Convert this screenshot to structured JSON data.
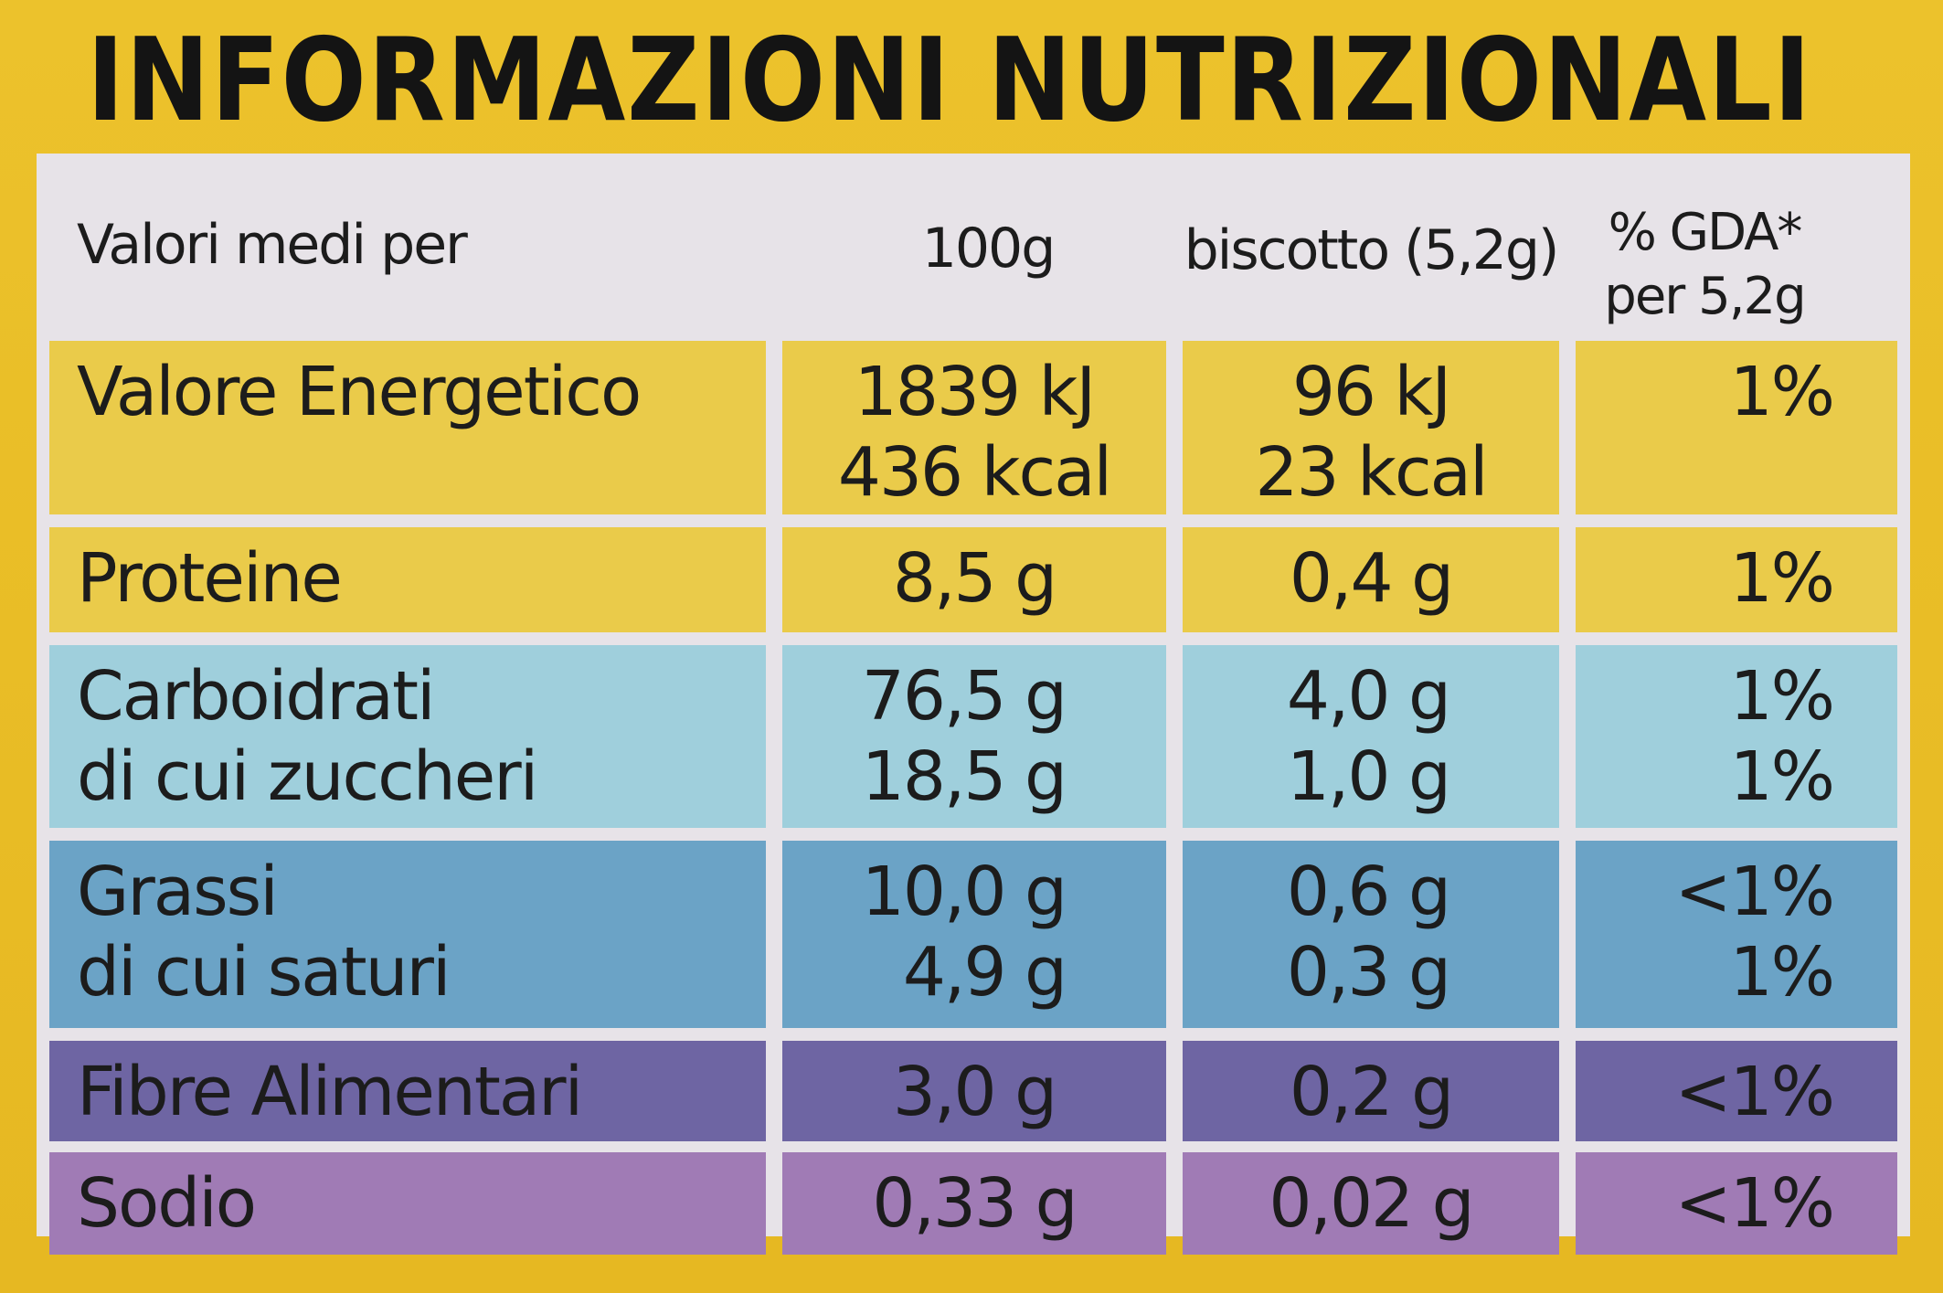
{
  "title": "INFORMAZIONI NUTRIZIONALI",
  "header": {
    "col1": "Valori medi per",
    "col2": "100g",
    "col3": "biscotto (5,2g)",
    "col4_line1": "% GDA*",
    "col4_line2": "per 5,2g"
  },
  "rows": [
    {
      "label_lines": [
        "Valore Energetico"
      ],
      "per100g": [
        "1839 kJ",
        "436 kcal"
      ],
      "per_biscotto": [
        "96 kJ",
        "23 kcal"
      ],
      "gda": [
        "1%"
      ]
    },
    {
      "label_lines": [
        "Proteine"
      ],
      "per100g": [
        "8,5 g"
      ],
      "per_biscotto": [
        "0,4 g"
      ],
      "gda": [
        "1%"
      ]
    },
    {
      "label_lines": [
        "Carboidrati",
        "di cui zuccheri"
      ],
      "per100g": [
        "76,5 g",
        "18,5 g"
      ],
      "per_biscotto": [
        "4,0 g",
        "1,0 g"
      ],
      "gda": [
        "1%",
        "1%"
      ]
    },
    {
      "label_lines": [
        "Grassi",
        "di cui saturi"
      ],
      "per100g": [
        "10,0 g",
        "4,9 g"
      ],
      "per_biscotto": [
        "0,6 g",
        "0,3 g"
      ],
      "gda": [
        "<1%",
        "1%"
      ]
    },
    {
      "label_lines": [
        "Fibre Alimentari"
      ],
      "per100g": [
        "3,0 g"
      ],
      "per_biscotto": [
        "0,2 g"
      ],
      "gda": [
        "<1%"
      ]
    },
    {
      "label_lines": [
        "Sodio"
      ],
      "per100g": [
        "0,33 g"
      ],
      "per_biscotto": [
        "0,02 g"
      ],
      "gda": [
        "<1%"
      ]
    }
  ],
  "colors": {
    "label_background": "#e9bd26",
    "table_background": "#e7e3e8",
    "energy_protein_rows": "#eacb4a",
    "carbohydrate_row": "#9fcfdc",
    "fat_row": "#6ba3c6",
    "fibre_row": "#6e65a3",
    "sodium_row": "#a07bb5"
  }
}
